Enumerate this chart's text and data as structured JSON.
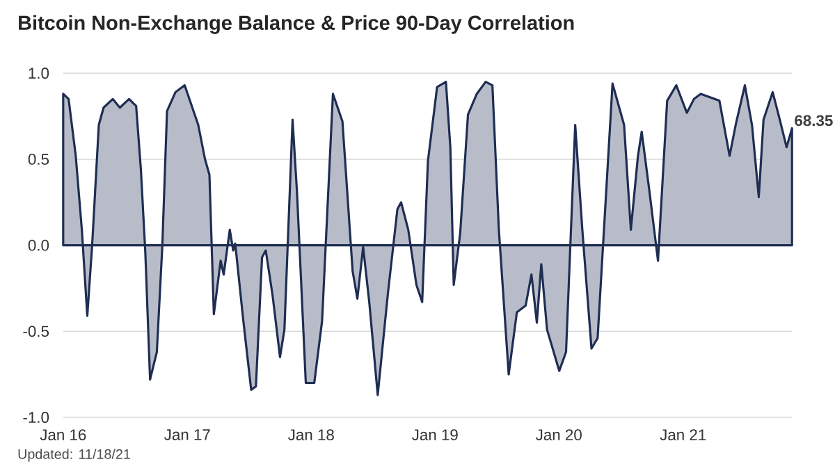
{
  "chart_data": {
    "type": "area",
    "title": "Bitcoin Non-Exchange Balance & Price 90-Day Correlation",
    "x": [
      "2016-01-01",
      "2016-01-17",
      "2016-02-07",
      "2016-02-25",
      "2016-03-12",
      "2016-03-26",
      "2016-04-15",
      "2016-04-29",
      "2016-05-26",
      "2016-06-16",
      "2016-07-13",
      "2016-08-03",
      "2016-08-17",
      "2016-08-30",
      "2016-09-13",
      "2016-10-03",
      "2016-10-19",
      "2016-11-02",
      "2016-11-27",
      "2016-12-24",
      "2017-02-02",
      "2017-02-22",
      "2017-03-07",
      "2017-03-20",
      "2017-04-09",
      "2017-04-18",
      "2017-05-06",
      "2017-05-16",
      "2017-05-22",
      "2017-06-15",
      "2017-07-08",
      "2017-07-22",
      "2017-08-09",
      "2017-08-20",
      "2017-09-09",
      "2017-10-01",
      "2017-10-14",
      "2017-11-07",
      "2017-11-20",
      "2017-12-16",
      "2018-01-10",
      "2018-02-02",
      "2018-03-06",
      "2018-04-03",
      "2018-05-03",
      "2018-05-17",
      "2018-06-03",
      "2018-06-21",
      "2018-07-16",
      "2018-08-15",
      "2018-09-12",
      "2018-09-23",
      "2018-10-14",
      "2018-11-07",
      "2018-11-24",
      "2018-12-11",
      "2019-01-07",
      "2019-02-02",
      "2019-02-15",
      "2019-02-25",
      "2019-03-16",
      "2019-04-08",
      "2019-05-04",
      "2019-05-30",
      "2019-06-19",
      "2019-07-08",
      "2019-08-06",
      "2019-08-30",
      "2019-09-25",
      "2019-10-12",
      "2019-10-28",
      "2019-11-10",
      "2019-11-27",
      "2020-01-02",
      "2020-01-22",
      "2020-02-18",
      "2020-03-10",
      "2020-04-06",
      "2020-04-24",
      "2020-06-07",
      "2020-07-11",
      "2020-07-31",
      "2020-08-21",
      "2020-09-01",
      "2020-09-24",
      "2020-10-19",
      "2020-11-15",
      "2020-12-12",
      "2021-01-12",
      "2021-02-02",
      "2021-02-22",
      "2021-04-18",
      "2021-05-18",
      "2021-06-05",
      "2021-07-02",
      "2021-07-23",
      "2021-08-12",
      "2021-08-26",
      "2021-09-22",
      "2021-10-13",
      "2021-11-02",
      "2021-11-18"
    ],
    "series": [
      {
        "color": "#1f2d52",
        "values": [
          0.88,
          0.85,
          0.52,
          0.09,
          -0.41,
          -0.01,
          0.7,
          0.8,
          0.85,
          0.8,
          0.85,
          0.81,
          0.44,
          -0.04,
          -0.78,
          -0.62,
          -0.01,
          0.78,
          0.89,
          0.93,
          0.7,
          0.5,
          0.41,
          -0.4,
          -0.09,
          -0.17,
          0.09,
          -0.03,
          0.01,
          -0.44,
          -0.84,
          -0.82,
          -0.07,
          -0.03,
          -0.29,
          -0.65,
          -0.49,
          0.73,
          0.31,
          -0.8,
          -0.8,
          -0.44,
          0.88,
          0.72,
          -0.15,
          -0.31,
          -0.01,
          -0.33,
          -0.87,
          -0.28,
          0.21,
          0.25,
          0.09,
          -0.23,
          -0.33,
          0.49,
          0.92,
          0.95,
          0.57,
          -0.23,
          0.07,
          0.76,
          0.88,
          0.95,
          0.93,
          0.09,
          -0.75,
          -0.39,
          -0.35,
          -0.17,
          -0.45,
          -0.11,
          -0.49,
          -0.73,
          -0.62,
          0.7,
          0.09,
          -0.6,
          -0.54,
          0.94,
          0.7,
          0.09,
          0.52,
          0.66,
          0.31,
          -0.09,
          0.84,
          0.93,
          0.77,
          0.85,
          0.88,
          0.84,
          0.52,
          0.7,
          0.93,
          0.7,
          0.28,
          0.73,
          0.89,
          0.73,
          0.57,
          0.68
        ]
      }
    ],
    "xlim": [
      "2016-01-01",
      "2021-11-18"
    ],
    "xticks": [
      {
        "value": "2016-01-01",
        "label": "Jan 16"
      },
      {
        "value": "2017-01-01",
        "label": "Jan 17"
      },
      {
        "value": "2018-01-01",
        "label": "Jan 18"
      },
      {
        "value": "2019-01-01",
        "label": "Jan 19"
      },
      {
        "value": "2020-01-01",
        "label": "Jan 20"
      },
      {
        "value": "2021-01-01",
        "label": "Jan 21"
      }
    ],
    "ylim": [
      -1.0,
      1.0
    ],
    "yticks": [
      {
        "value": -1.0,
        "label": "-1.0"
      },
      {
        "value": -0.5,
        "label": "-0.5"
      },
      {
        "value": 0.0,
        "label": "0.0"
      },
      {
        "value": 0.5,
        "label": "0.5"
      },
      {
        "value": 1.0,
        "label": "1.0"
      }
    ],
    "grid": "y",
    "annotations": [
      {
        "text": "68.35",
        "x": "2021-11-18",
        "y": 0.68
      },
      "Updated: 11/18/21"
    ]
  }
}
